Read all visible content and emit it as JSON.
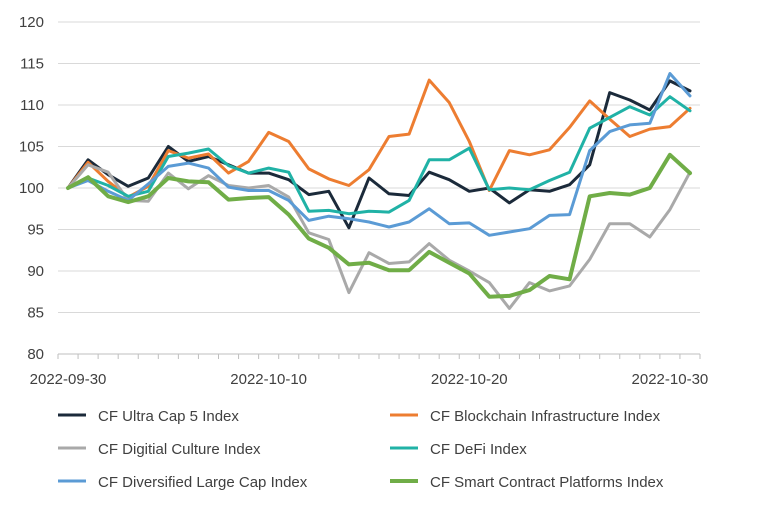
{
  "chart_data": {
    "type": "line",
    "title": "",
    "xlabel": "",
    "ylabel": "",
    "ylim": [
      80,
      120
    ],
    "yticks": [
      80,
      85,
      90,
      95,
      100,
      105,
      110,
      115,
      120
    ],
    "x_tick_labels": [
      {
        "index": 0,
        "label": "2022-09-30"
      },
      {
        "index": 10,
        "label": "2022-10-10"
      },
      {
        "index": 20,
        "label": "2022-10-20"
      },
      {
        "index": 30,
        "label": "2022-10-30"
      }
    ],
    "grid": "horizontal",
    "legend_position": "bottom",
    "x": [
      "2022-09-30",
      "2022-10-01",
      "2022-10-02",
      "2022-10-03",
      "2022-10-04",
      "2022-10-05",
      "2022-10-06",
      "2022-10-07",
      "2022-10-08",
      "2022-10-09",
      "2022-10-10",
      "2022-10-11",
      "2022-10-12",
      "2022-10-13",
      "2022-10-14",
      "2022-10-15",
      "2022-10-16",
      "2022-10-17",
      "2022-10-18",
      "2022-10-19",
      "2022-10-20",
      "2022-10-21",
      "2022-10-22",
      "2022-10-23",
      "2022-10-24",
      "2022-10-25",
      "2022-10-26",
      "2022-10-27",
      "2022-10-28",
      "2022-10-29",
      "2022-10-30",
      "2022-10-31"
    ],
    "series": [
      {
        "name": "CF Ultra Cap 5 Index",
        "color": "#1b2a3a",
        "width": 3,
        "values": [
          100,
          103.4,
          101.6,
          100.2,
          101.2,
          105.0,
          103.2,
          103.8,
          102.8,
          101.8,
          101.8,
          101.0,
          99.2,
          99.6,
          95.2,
          101.2,
          99.3,
          99.1,
          101.9,
          101.0,
          99.6,
          100.0,
          98.2,
          99.8,
          99.6,
          100.4,
          102.8,
          111.5,
          110.6,
          109.4,
          112.9,
          111.7
        ]
      },
      {
        "name": "CF Blockchain Infrastructure Index",
        "color": "#ed7d31",
        "width": 3,
        "values": [
          100,
          103.1,
          100.8,
          98.9,
          100.2,
          104.5,
          103.6,
          104.1,
          101.8,
          103.2,
          106.7,
          105.6,
          102.3,
          101.1,
          100.3,
          102.2,
          106.2,
          106.5,
          113.0,
          110.3,
          105.6,
          99.7,
          104.5,
          104.0,
          104.6,
          107.3,
          110.5,
          108.3,
          106.2,
          107.1,
          107.4,
          109.6
        ]
      },
      {
        "name": "CF Digitial Culture Index",
        "color": "#a9a9a9",
        "width": 3,
        "values": [
          100,
          102.8,
          101.9,
          98.5,
          98.4,
          101.8,
          99.9,
          101.5,
          100.3,
          100.0,
          100.3,
          98.9,
          94.6,
          93.8,
          87.4,
          92.2,
          90.9,
          91.1,
          93.3,
          91.3,
          90.0,
          88.6,
          85.5,
          88.6,
          87.6,
          88.2,
          91.4,
          95.7,
          95.7,
          94.1,
          97.4,
          101.9
        ]
      },
      {
        "name": "CF DeFi Index",
        "color": "#20b2a6",
        "width": 3,
        "values": [
          100,
          101.2,
          100.3,
          99.0,
          99.6,
          103.8,
          104.2,
          104.7,
          102.7,
          101.8,
          102.4,
          101.9,
          97.2,
          97.3,
          96.9,
          97.2,
          97.1,
          98.5,
          103.4,
          103.4,
          104.8,
          99.8,
          100.0,
          99.8,
          100.9,
          101.9,
          107.2,
          108.5,
          109.8,
          108.8,
          111.0,
          109.3
        ]
      },
      {
        "name": "CF Diversified Large Cap Index",
        "color": "#5b9bd5",
        "width": 3,
        "values": [
          100,
          100.9,
          99.6,
          98.5,
          100.5,
          102.6,
          103.0,
          102.4,
          100.1,
          99.7,
          99.7,
          98.5,
          96.1,
          96.6,
          96.3,
          95.9,
          95.3,
          95.9,
          97.5,
          95.7,
          95.8,
          94.3,
          94.7,
          95.1,
          96.7,
          96.8,
          104.5,
          106.8,
          107.6,
          107.8,
          113.8,
          111.1
        ]
      },
      {
        "name": "CF Smart Contract Platforms Index",
        "color": "#70ad47",
        "width": 4,
        "values": [
          100,
          101.3,
          99.0,
          98.3,
          99.0,
          101.2,
          100.8,
          100.7,
          98.6,
          98.8,
          98.9,
          96.8,
          93.9,
          92.8,
          90.8,
          91.0,
          90.1,
          90.1,
          92.3,
          91.0,
          89.7,
          86.9,
          87.0,
          87.7,
          89.4,
          89.0,
          99.0,
          99.4,
          99.2,
          100.0,
          104.0,
          101.8
        ]
      }
    ]
  }
}
